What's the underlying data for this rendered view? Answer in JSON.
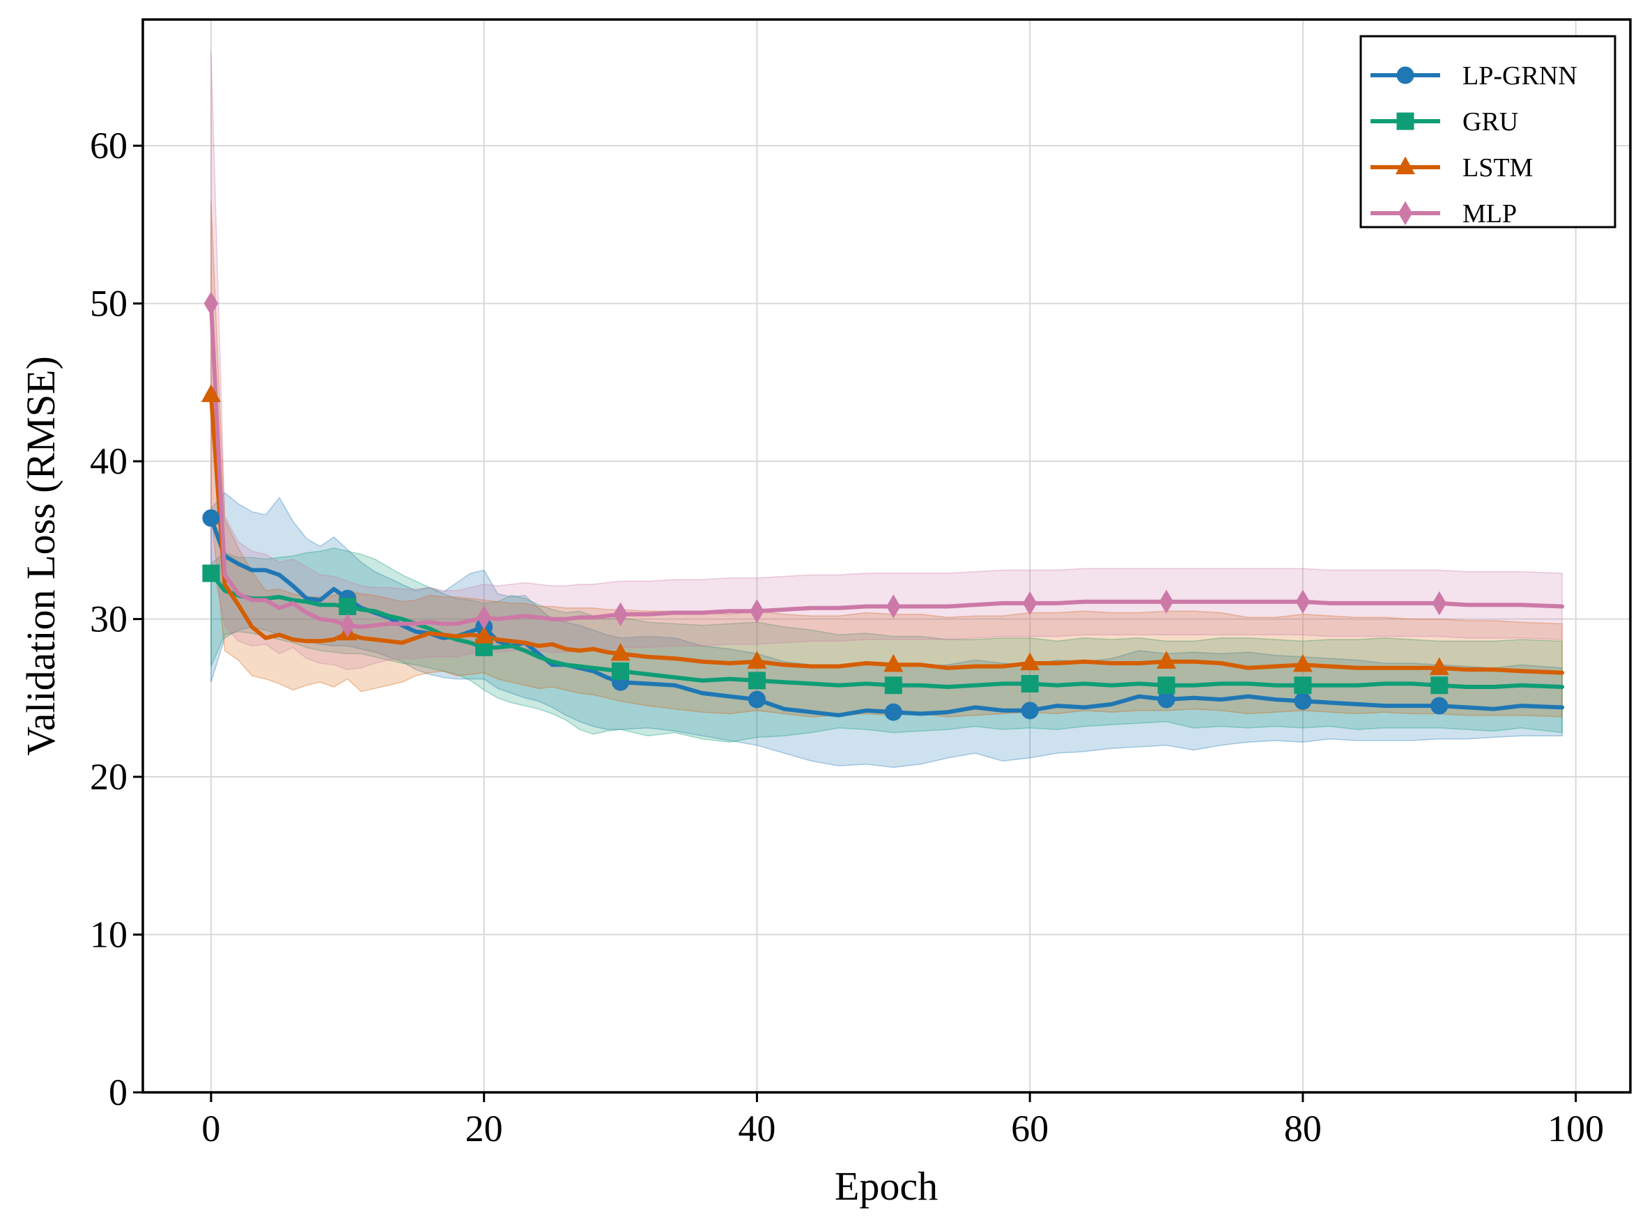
{
  "chart_data": {
    "type": "line",
    "title": "",
    "xlabel": "Epoch",
    "ylabel": "Validation Loss (RMSE)",
    "xlim": [
      -5,
      104
    ],
    "ylim": [
      0,
      68
    ],
    "xticks": [
      "0",
      "20",
      "40",
      "60",
      "80",
      "100"
    ],
    "yticks": [
      "0",
      "10",
      "20",
      "30",
      "40",
      "50",
      "60"
    ],
    "grid": true,
    "legend_position": "top-right",
    "marker_every": 10,
    "series": [
      {
        "name": "LP-GRNN",
        "color": "#1f77b4",
        "marker": "circle",
        "x": [
          0,
          1,
          2,
          3,
          4,
          5,
          6,
          7,
          8,
          9,
          10,
          11,
          12,
          13,
          14,
          15,
          16,
          17,
          18,
          19,
          20,
          21,
          22,
          23,
          24,
          25,
          26,
          27,
          28,
          29,
          30,
          32,
          34,
          36,
          38,
          40,
          42,
          44,
          46,
          48,
          50,
          52,
          54,
          56,
          58,
          60,
          62,
          64,
          66,
          68,
          70,
          72,
          74,
          76,
          78,
          80,
          82,
          84,
          86,
          88,
          90,
          92,
          94,
          96,
          99
        ],
        "y": [
          36.4,
          34.0,
          33.5,
          33.1,
          33.1,
          32.8,
          32.1,
          31.3,
          31.2,
          31.9,
          31.3,
          30.7,
          30.4,
          30.1,
          29.6,
          29.2,
          29.1,
          28.8,
          28.9,
          29.2,
          29.5,
          28.6,
          28.3,
          28.5,
          27.8,
          27.1,
          27.1,
          26.9,
          26.7,
          26.3,
          26.0,
          25.9,
          25.8,
          25.3,
          25.1,
          24.9,
          24.3,
          24.1,
          23.9,
          24.2,
          24.1,
          24.0,
          24.1,
          24.4,
          24.2,
          24.2,
          24.5,
          24.4,
          24.6,
          25.1,
          24.9,
          25.0,
          24.9,
          25.1,
          24.9,
          24.8,
          24.7,
          24.6,
          24.5,
          24.5,
          24.5,
          24.4,
          24.3,
          24.5,
          24.4
        ],
        "lower": [
          26.0,
          28.8,
          29.3,
          29.5,
          29.3,
          29.0,
          28.8,
          28.6,
          28.4,
          28.3,
          28.3,
          28.1,
          27.9,
          27.6,
          27.3,
          26.8,
          26.5,
          26.3,
          26.2,
          26.2,
          26.2,
          25.6,
          25.3,
          25.0,
          24.8,
          24.4,
          23.9,
          23.5,
          23.2,
          23.0,
          23.0,
          23.1,
          22.9,
          22.6,
          22.3,
          22.0,
          21.5,
          21.0,
          20.7,
          20.8,
          20.6,
          20.8,
          21.2,
          21.5,
          21.0,
          21.2,
          21.5,
          21.6,
          21.8,
          21.9,
          22.0,
          21.7,
          22.0,
          22.2,
          22.3,
          22.2,
          22.4,
          22.3,
          22.3,
          22.3,
          22.4,
          22.4,
          22.5,
          22.6,
          22.6
        ],
        "upper": [
          37.0,
          38.0,
          37.3,
          36.8,
          36.6,
          37.7,
          36.2,
          35.1,
          34.6,
          35.2,
          34.4,
          33.6,
          33.0,
          32.6,
          32.2,
          31.8,
          32.0,
          31.7,
          32.3,
          32.9,
          33.1,
          31.6,
          31.4,
          31.5,
          30.7,
          30.0,
          29.8,
          29.6,
          29.3,
          29.0,
          28.8,
          28.9,
          28.8,
          28.3,
          28.1,
          27.8,
          27.3,
          27.1,
          26.9,
          27.3,
          27.2,
          27.0,
          27.1,
          27.4,
          27.2,
          27.1,
          27.4,
          27.3,
          27.5,
          28.0,
          27.8,
          27.9,
          27.8,
          27.9,
          27.7,
          27.6,
          27.5,
          27.4,
          27.2,
          27.2,
          27.1,
          27.0,
          26.9,
          27.1,
          26.9
        ]
      },
      {
        "name": "GRU",
        "color": "#0f9d76",
        "marker": "square",
        "x": [
          0,
          1,
          2,
          3,
          4,
          5,
          6,
          7,
          8,
          9,
          10,
          11,
          12,
          13,
          14,
          15,
          16,
          17,
          18,
          19,
          20,
          21,
          22,
          23,
          24,
          25,
          26,
          27,
          28,
          29,
          30,
          32,
          34,
          36,
          38,
          40,
          42,
          44,
          46,
          48,
          50,
          52,
          54,
          56,
          58,
          60,
          62,
          64,
          66,
          68,
          70,
          72,
          74,
          76,
          78,
          80,
          82,
          84,
          86,
          88,
          90,
          92,
          94,
          96,
          99
        ],
        "y": [
          32.9,
          31.8,
          31.5,
          31.3,
          31.3,
          31.4,
          31.2,
          31.1,
          30.9,
          30.9,
          30.8,
          30.6,
          30.5,
          30.2,
          30.0,
          29.7,
          29.4,
          29.0,
          28.7,
          28.5,
          28.2,
          28.2,
          28.3,
          28.0,
          27.6,
          27.3,
          27.1,
          27.0,
          26.9,
          26.8,
          26.7,
          26.5,
          26.3,
          26.1,
          26.2,
          26.1,
          26.0,
          25.9,
          25.8,
          25.9,
          25.8,
          25.8,
          25.7,
          25.8,
          25.9,
          25.9,
          25.8,
          25.9,
          25.8,
          25.9,
          25.8,
          25.8,
          25.9,
          25.9,
          25.8,
          25.8,
          25.8,
          25.8,
          25.9,
          25.9,
          25.8,
          25.7,
          25.7,
          25.8,
          25.7
        ],
        "lower": [
          27.0,
          29.0,
          29.2,
          29.1,
          28.9,
          28.7,
          28.5,
          28.2,
          28.0,
          27.9,
          27.8,
          27.8,
          27.6,
          27.4,
          27.2,
          27.1,
          26.9,
          26.7,
          26.5,
          26.1,
          25.5,
          25.0,
          24.7,
          24.5,
          24.3,
          24.0,
          23.6,
          23.0,
          22.7,
          22.9,
          23.0,
          22.6,
          22.8,
          22.4,
          22.2,
          22.5,
          22.6,
          22.8,
          23.1,
          23.0,
          22.8,
          22.9,
          23.0,
          23.2,
          23.0,
          23.1,
          23.0,
          23.2,
          23.3,
          23.4,
          23.5,
          23.1,
          23.2,
          23.1,
          23.2,
          23.1,
          23.2,
          23.0,
          23.1,
          23.1,
          23.1,
          23.0,
          22.9,
          23.1,
          22.8
        ],
        "upper": [
          33.5,
          34.2,
          33.9,
          33.9,
          33.8,
          33.9,
          34.0,
          34.2,
          34.3,
          34.5,
          34.3,
          34.1,
          33.8,
          33.3,
          32.8,
          32.4,
          32.0,
          31.6,
          31.3,
          31.2,
          31.0,
          31.1,
          31.5,
          31.3,
          30.9,
          30.6,
          30.4,
          30.5,
          30.2,
          30.0,
          30.1,
          29.8,
          29.7,
          29.6,
          29.7,
          29.8,
          29.5,
          29.3,
          29.0,
          29.1,
          28.9,
          28.9,
          28.7,
          28.7,
          28.8,
          28.8,
          28.6,
          28.8,
          28.7,
          28.8,
          28.6,
          28.6,
          28.8,
          28.8,
          28.7,
          28.6,
          28.7,
          28.7,
          28.8,
          28.7,
          28.6,
          28.6,
          28.6,
          28.7,
          28.6
        ]
      },
      {
        "name": "LSTM",
        "color": "#d55e00",
        "marker": "triangle",
        "x": [
          0,
          1,
          2,
          3,
          4,
          5,
          6,
          7,
          8,
          9,
          10,
          11,
          12,
          13,
          14,
          15,
          16,
          17,
          18,
          19,
          20,
          21,
          22,
          23,
          24,
          25,
          26,
          27,
          28,
          29,
          30,
          32,
          34,
          36,
          38,
          40,
          42,
          44,
          46,
          48,
          50,
          52,
          54,
          56,
          58,
          60,
          62,
          64,
          66,
          68,
          70,
          72,
          74,
          76,
          78,
          80,
          82,
          84,
          86,
          88,
          90,
          92,
          94,
          96,
          99
        ],
        "y": [
          44.2,
          32.2,
          30.9,
          29.5,
          28.8,
          29.0,
          28.7,
          28.6,
          28.6,
          28.7,
          29.1,
          28.8,
          28.7,
          28.6,
          28.5,
          28.8,
          29.1,
          29.0,
          28.9,
          29.0,
          28.9,
          28.7,
          28.6,
          28.5,
          28.3,
          28.4,
          28.1,
          28.0,
          28.1,
          27.9,
          27.8,
          27.6,
          27.5,
          27.3,
          27.2,
          27.3,
          27.1,
          27.0,
          27.0,
          27.2,
          27.1,
          27.1,
          26.9,
          27.0,
          27.0,
          27.2,
          27.2,
          27.3,
          27.2,
          27.2,
          27.3,
          27.3,
          27.2,
          26.9,
          27.0,
          27.1,
          27.0,
          26.9,
          26.9,
          26.9,
          26.9,
          26.8,
          26.8,
          26.7,
          26.6
        ],
        "lower": [
          37.0,
          28.0,
          27.4,
          26.4,
          26.2,
          25.9,
          25.5,
          25.8,
          26.0,
          25.7,
          26.2,
          25.4,
          25.6,
          25.8,
          26.0,
          26.4,
          26.6,
          26.7,
          26.4,
          26.5,
          26.6,
          26.2,
          26.0,
          25.8,
          25.6,
          25.7,
          25.5,
          25.3,
          25.2,
          25.0,
          24.8,
          24.5,
          24.3,
          24.1,
          24.0,
          24.2,
          24.0,
          23.8,
          23.9,
          24.0,
          23.9,
          24.0,
          23.8,
          23.9,
          24.0,
          24.1,
          24.0,
          24.2,
          24.1,
          24.2,
          24.2,
          24.3,
          24.2,
          24.0,
          24.1,
          24.2,
          24.1,
          24.0,
          24.1,
          24.0,
          24.0,
          23.9,
          23.9,
          23.9,
          23.8
        ],
        "upper": [
          56.5,
          36.3,
          34.5,
          33.0,
          31.8,
          31.9,
          31.6,
          31.4,
          31.4,
          31.5,
          31.8,
          31.6,
          31.5,
          31.3,
          31.1,
          31.2,
          31.5,
          31.4,
          31.4,
          31.3,
          31.2,
          31.1,
          31.0,
          31.0,
          30.8,
          30.8,
          30.7,
          30.7,
          30.7,
          30.6,
          30.6,
          30.5,
          30.5,
          30.4,
          30.3,
          30.5,
          30.3,
          30.2,
          30.2,
          30.4,
          30.3,
          30.3,
          30.1,
          30.2,
          30.2,
          30.4,
          30.4,
          30.5,
          30.4,
          30.4,
          30.5,
          30.5,
          30.4,
          30.1,
          30.1,
          30.3,
          30.2,
          30.1,
          30.1,
          30.0,
          30.0,
          29.9,
          29.9,
          29.8,
          29.7
        ]
      },
      {
        "name": "MLP",
        "color": "#cc79a7",
        "marker": "diamond",
        "x": [
          0,
          1,
          2,
          3,
          4,
          5,
          6,
          7,
          8,
          9,
          10,
          11,
          12,
          13,
          14,
          15,
          16,
          17,
          18,
          19,
          20,
          21,
          22,
          23,
          24,
          25,
          26,
          27,
          28,
          29,
          30,
          32,
          34,
          36,
          38,
          40,
          42,
          44,
          46,
          48,
          50,
          52,
          54,
          56,
          58,
          60,
          62,
          64,
          66,
          68,
          70,
          72,
          74,
          76,
          78,
          80,
          82,
          84,
          86,
          88,
          90,
          92,
          94,
          96,
          99
        ],
        "y": [
          50.0,
          32.8,
          31.6,
          31.2,
          31.2,
          30.7,
          31.0,
          30.4,
          30.0,
          29.9,
          29.6,
          29.5,
          29.6,
          29.7,
          29.7,
          29.7,
          29.8,
          29.7,
          29.7,
          29.9,
          30.1,
          30.0,
          30.1,
          30.2,
          30.1,
          30.0,
          30.0,
          30.1,
          30.1,
          30.2,
          30.3,
          30.3,
          30.4,
          30.4,
          30.5,
          30.5,
          30.6,
          30.7,
          30.7,
          30.8,
          30.8,
          30.8,
          30.8,
          30.9,
          31.0,
          31.0,
          31.0,
          31.1,
          31.1,
          31.1,
          31.1,
          31.1,
          31.1,
          31.1,
          31.1,
          31.1,
          31.0,
          31.0,
          31.0,
          31.0,
          31.0,
          30.9,
          30.9,
          30.9,
          30.8
        ],
        "lower": [
          34.0,
          29.6,
          28.6,
          28.3,
          28.4,
          27.8,
          28.2,
          27.5,
          27.2,
          27.1,
          26.8,
          26.9,
          27.2,
          27.4,
          27.5,
          27.5,
          27.6,
          27.6,
          27.6,
          27.8,
          28.0,
          27.9,
          28.0,
          28.1,
          28.0,
          27.9,
          27.9,
          28.0,
          28.0,
          28.1,
          28.2,
          28.2,
          28.3,
          28.3,
          28.4,
          28.4,
          28.5,
          28.6,
          28.6,
          28.7,
          28.7,
          28.7,
          28.7,
          28.8,
          28.9,
          28.9,
          28.9,
          29.0,
          29.0,
          29.0,
          29.0,
          29.0,
          29.0,
          29.0,
          29.0,
          29.0,
          28.9,
          28.9,
          28.9,
          28.9,
          28.9,
          28.8,
          28.8,
          28.8,
          28.7
        ],
        "upper": [
          66.0,
          36.5,
          34.9,
          34.3,
          34.1,
          33.6,
          33.8,
          33.3,
          32.8,
          32.7,
          32.4,
          32.1,
          32.0,
          32.0,
          31.9,
          31.9,
          32.0,
          31.8,
          31.8,
          32.0,
          32.2,
          32.1,
          32.2,
          32.3,
          32.2,
          32.1,
          32.1,
          32.2,
          32.2,
          32.3,
          32.4,
          32.4,
          32.5,
          32.5,
          32.6,
          32.6,
          32.7,
          32.8,
          32.8,
          32.9,
          32.9,
          32.9,
          32.9,
          33.0,
          33.1,
          33.1,
          33.1,
          33.2,
          33.2,
          33.2,
          33.2,
          33.2,
          33.2,
          33.2,
          33.2,
          33.2,
          33.1,
          33.1,
          33.1,
          33.1,
          33.1,
          33.0,
          33.0,
          33.0,
          32.9
        ]
      }
    ]
  }
}
